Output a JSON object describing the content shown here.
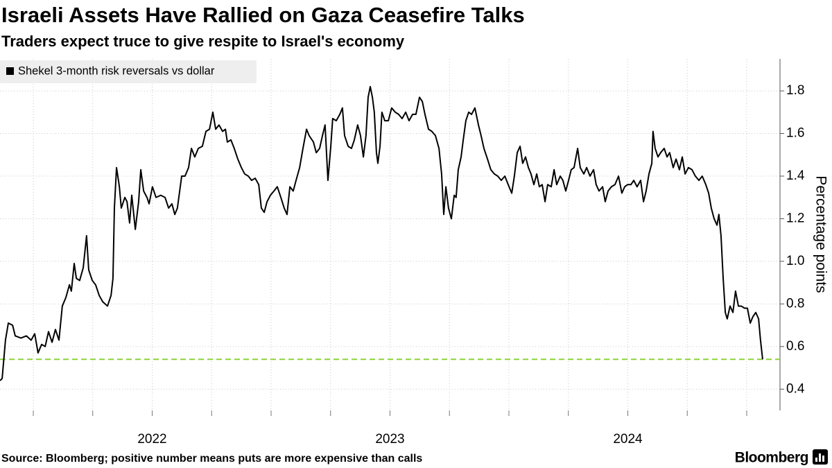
{
  "chart_data": {
    "type": "line",
    "title": "Israeli Assets Have Rallied on Gaza Ceasefire Talks",
    "subtitle": "Traders expect truce to give respite to Israel's economy",
    "y_axis_label": "Percentage points",
    "source": "Source: Bloomberg; positive number means puts are more expensive than calls",
    "brand": "Bloomberg",
    "legend_position": "top-left",
    "grid": true,
    "reference_line": {
      "value": 0.54,
      "color": "#8cd33a"
    },
    "xlim": [
      2021.86,
      2025.14
    ],
    "xticks": [
      2022,
      2023,
      2024
    ],
    "xgrid": [
      2022,
      2022.25,
      2022.5,
      2022.75,
      2023,
      2023.25,
      2023.5,
      2023.75,
      2024,
      2024.25,
      2024.5,
      2024.75,
      2025
    ],
    "ylim": [
      0.3,
      1.95
    ],
    "yticks": [
      0.4,
      0.6,
      0.8,
      {
        "value": 1.0,
        "label": "1.0"
      },
      1.2,
      1.4,
      1.6,
      1.8
    ],
    "x": [
      2021.86,
      2021.869,
      2021.883,
      2021.895,
      2021.913,
      2021.924,
      2021.948,
      2021.971,
      2021.991,
      2022.006,
      2022.02,
      2022.035,
      2022.05,
      2022.064,
      2022.079,
      2022.093,
      2022.108,
      2022.122,
      2022.137,
      2022.152,
      2022.16,
      2022.172,
      2022.181,
      2022.195,
      2022.21,
      2022.224,
      2022.233,
      2022.248,
      2022.262,
      2022.277,
      2022.292,
      2022.312,
      2022.327,
      2022.335,
      2022.341,
      2022.35,
      2022.362,
      2022.37,
      2022.385,
      2022.394,
      2022.405,
      2022.414,
      2022.429,
      2022.443,
      2022.452,
      2022.464,
      2022.478,
      2022.487,
      2022.501,
      2022.516,
      2022.536,
      2022.554,
      2022.569,
      2022.583,
      2022.595,
      2022.606,
      2022.624,
      2022.638,
      2022.653,
      2022.665,
      2022.679,
      2022.694,
      2022.711,
      2022.726,
      2022.741,
      2022.755,
      2022.767,
      2022.781,
      2022.796,
      2022.808,
      2022.816,
      2022.831,
      2022.845,
      2022.86,
      2022.875,
      2022.889,
      2022.904,
      2022.918,
      2022.933,
      2022.948,
      2022.959,
      2022.971,
      2022.983,
      2022.997,
      2023.012,
      2023.026,
      2023.041,
      2023.055,
      2023.067,
      2023.079,
      2023.093,
      2023.105,
      2023.12,
      2023.134,
      2023.149,
      2023.16,
      2023.178,
      2023.19,
      2023.204,
      2023.216,
      2023.227,
      2023.239,
      2023.251,
      2023.259,
      2023.274,
      2023.289,
      2023.3,
      2023.309,
      2023.324,
      2023.338,
      2023.35,
      2023.364,
      2023.376,
      2023.388,
      2023.399,
      2023.408,
      2023.417,
      2023.426,
      2023.434,
      2023.443,
      2023.449,
      2023.458,
      2023.466,
      2023.478,
      2023.493,
      2023.507,
      2023.522,
      2023.536,
      2023.551,
      2023.566,
      2023.58,
      2023.595,
      2023.609,
      2023.624,
      2023.636,
      2023.647,
      2023.662,
      2023.676,
      2023.691,
      2023.706,
      2023.717,
      2023.726,
      2023.735,
      2023.746,
      2023.758,
      2023.77,
      2023.778,
      2023.787,
      2023.799,
      2023.808,
      2023.819,
      2023.831,
      2023.843,
      2023.857,
      2023.872,
      2023.883,
      2023.895,
      2023.91,
      2023.924,
      2023.939,
      2023.953,
      2023.968,
      2023.983,
      2023.997,
      2024.012,
      2024.023,
      2024.035,
      2024.047,
      2024.058,
      2024.07,
      2024.082,
      2024.093,
      2024.105,
      2024.117,
      2024.128,
      2024.14,
      2024.152,
      2024.163,
      2024.178,
      2024.19,
      2024.201,
      2024.216,
      2024.227,
      2024.239,
      2024.251,
      2024.262,
      2024.274,
      2024.289,
      2024.3,
      2024.315,
      2024.327,
      2024.341,
      2024.356,
      2024.367,
      2024.379,
      2024.394,
      2024.405,
      2024.417,
      2024.431,
      2024.446,
      2024.461,
      2024.475,
      2024.487,
      2024.499,
      2024.513,
      2024.525,
      2024.539,
      2024.554,
      2024.566,
      2024.577,
      2024.589,
      2024.601,
      2024.606,
      2024.615,
      2024.627,
      2024.638,
      2024.653,
      2024.665,
      2024.676,
      2024.691,
      2024.703,
      2024.717,
      2024.729,
      2024.741,
      2024.755,
      2024.77,
      2024.784,
      2024.799,
      2024.813,
      2024.828,
      2024.84,
      2024.851,
      2024.863,
      2024.875,
      2024.883,
      2024.892,
      2024.901,
      2024.91,
      2024.918,
      2024.93,
      2024.942,
      2024.953,
      2024.965,
      2024.977,
      2024.991,
      2025.003,
      2025.015,
      2025.026,
      2025.038,
      2025.05,
      2025.058,
      2025.067
    ],
    "series": [
      {
        "name": "Shekel 3-month risk reversals vs dollar",
        "color": "#000000",
        "values": [
          0.44,
          0.45,
          0.63,
          0.71,
          0.7,
          0.65,
          0.64,
          0.65,
          0.63,
          0.66,
          0.57,
          0.61,
          0.6,
          0.67,
          0.62,
          0.68,
          0.63,
          0.79,
          0.83,
          0.89,
          0.86,
          0.99,
          0.92,
          0.91,
          0.97,
          1.12,
          0.96,
          0.91,
          0.89,
          0.84,
          0.81,
          0.79,
          0.84,
          0.92,
          1.25,
          1.44,
          1.35,
          1.25,
          1.3,
          1.28,
          1.18,
          1.31,
          1.15,
          1.28,
          1.43,
          1.33,
          1.3,
          1.27,
          1.35,
          1.3,
          1.31,
          1.3,
          1.25,
          1.27,
          1.22,
          1.25,
          1.4,
          1.4,
          1.44,
          1.53,
          1.49,
          1.53,
          1.54,
          1.61,
          1.62,
          1.7,
          1.62,
          1.64,
          1.61,
          1.62,
          1.56,
          1.57,
          1.53,
          1.48,
          1.44,
          1.41,
          1.4,
          1.38,
          1.39,
          1.36,
          1.25,
          1.23,
          1.28,
          1.31,
          1.33,
          1.35,
          1.3,
          1.25,
          1.22,
          1.35,
          1.33,
          1.38,
          1.44,
          1.53,
          1.62,
          1.59,
          1.56,
          1.51,
          1.53,
          1.59,
          1.64,
          1.38,
          1.54,
          1.67,
          1.66,
          1.69,
          1.72,
          1.59,
          1.54,
          1.53,
          1.57,
          1.64,
          1.59,
          1.49,
          1.59,
          1.77,
          1.82,
          1.77,
          1.7,
          1.51,
          1.46,
          1.54,
          1.7,
          1.66,
          1.66,
          1.72,
          1.7,
          1.69,
          1.67,
          1.7,
          1.66,
          1.69,
          1.69,
          1.77,
          1.75,
          1.69,
          1.62,
          1.61,
          1.59,
          1.53,
          1.41,
          1.22,
          1.35,
          1.25,
          1.2,
          1.31,
          1.3,
          1.43,
          1.49,
          1.57,
          1.66,
          1.7,
          1.69,
          1.72,
          1.64,
          1.59,
          1.53,
          1.48,
          1.43,
          1.41,
          1.4,
          1.38,
          1.4,
          1.36,
          1.32,
          1.4,
          1.51,
          1.54,
          1.46,
          1.49,
          1.44,
          1.41,
          1.36,
          1.41,
          1.35,
          1.36,
          1.28,
          1.36,
          1.35,
          1.43,
          1.36,
          1.4,
          1.38,
          1.33,
          1.38,
          1.43,
          1.44,
          1.53,
          1.44,
          1.41,
          1.44,
          1.4,
          1.43,
          1.36,
          1.33,
          1.35,
          1.28,
          1.33,
          1.35,
          1.36,
          1.4,
          1.32,
          1.35,
          1.36,
          1.36,
          1.38,
          1.35,
          1.38,
          1.28,
          1.33,
          1.41,
          1.46,
          1.61,
          1.53,
          1.49,
          1.51,
          1.53,
          1.49,
          1.51,
          1.44,
          1.48,
          1.43,
          1.49,
          1.41,
          1.44,
          1.43,
          1.4,
          1.38,
          1.4,
          1.36,
          1.32,
          1.25,
          1.2,
          1.17,
          1.22,
          1.12,
          0.92,
          0.76,
          0.73,
          0.79,
          0.76,
          0.86,
          0.79,
          0.79,
          0.78,
          0.78,
          0.71,
          0.74,
          0.76,
          0.73,
          0.63,
          0.54
        ]
      }
    ]
  }
}
